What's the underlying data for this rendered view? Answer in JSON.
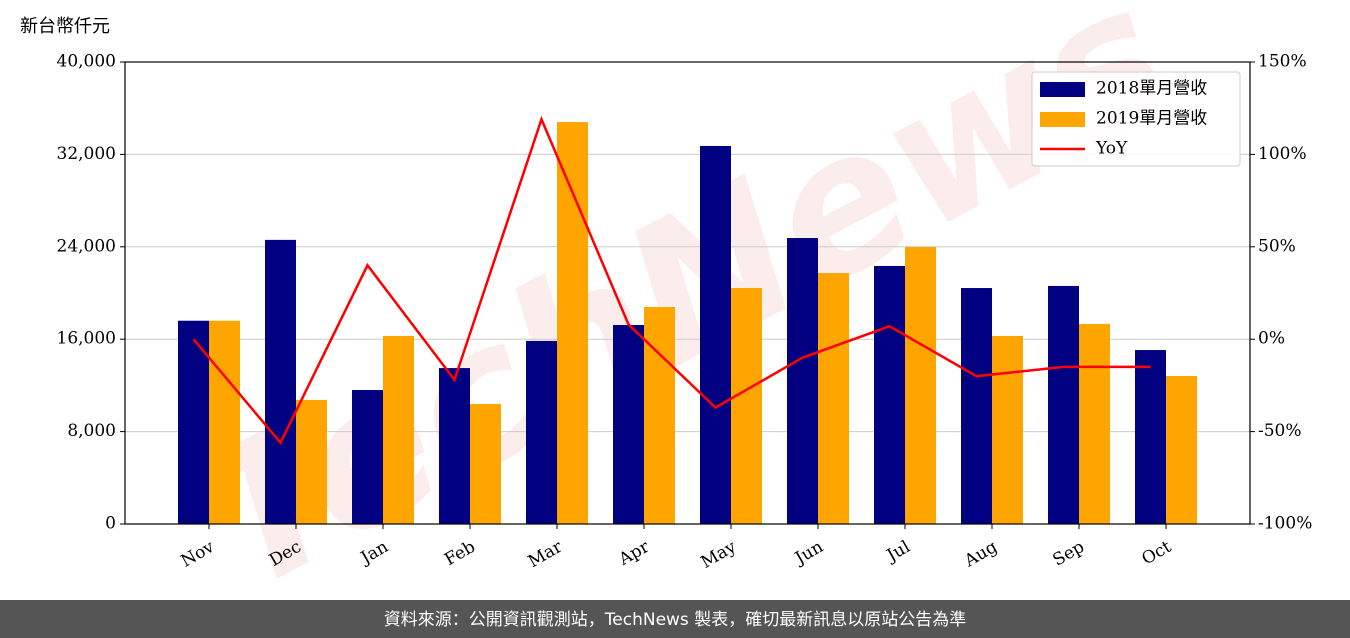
{
  "chart_data": {
    "type": "bar",
    "y_label": "新台幣仟元",
    "watermark": "TechNews",
    "footer": "資料來源：公開資訊觀測站，TechNews 製表，確切最新訊息以原站公告為準",
    "categories": [
      "Nov",
      "Dec",
      "Jan",
      "Feb",
      "Mar",
      "Apr",
      "May",
      "Jun",
      "Jul",
      "Aug",
      "Sep",
      "Oct"
    ],
    "series": [
      {
        "name": "2018單月營收",
        "type": "bar",
        "color": "#000080",
        "values": [
          17600,
          24600,
          11600,
          13500,
          15850,
          17230,
          32730,
          24760,
          22340,
          20430,
          20610,
          15060
        ]
      },
      {
        "name": "2019單月營收",
        "type": "bar",
        "color": "#ffa500",
        "values": [
          17600,
          10740,
          16280,
          10390,
          34800,
          18790,
          20430,
          21730,
          23980,
          16280,
          17320,
          12810
        ]
      },
      {
        "name": "YoY",
        "type": "line",
        "axis": "y2",
        "color": "#ff0000",
        "values": [
          0,
          -56,
          40,
          -22,
          119,
          8,
          -37,
          -10,
          7,
          -20,
          -15,
          -15
        ]
      }
    ],
    "ylim": [
      0,
      40000
    ],
    "yticks": [
      0,
      {
        "value": 8000,
        "label": "8,000"
      },
      {
        "value": 16000,
        "label": "16,000"
      },
      {
        "value": 24000,
        "label": "24,000"
      },
      {
        "value": 32000,
        "label": "32,000"
      },
      {
        "value": 40000,
        "label": "40,000"
      }
    ],
    "y2lim": [
      -100,
      150
    ],
    "y2ticks": [
      {
        "value": -100,
        "label": "-100%"
      },
      {
        "value": -50,
        "label": "-50%"
      },
      {
        "value": 0,
        "label": "0%"
      },
      {
        "value": 50,
        "label": "50%"
      },
      {
        "value": 100,
        "label": "100%"
      },
      {
        "value": 150,
        "label": "150%"
      }
    ],
    "grid": true,
    "legend": "upper right"
  }
}
